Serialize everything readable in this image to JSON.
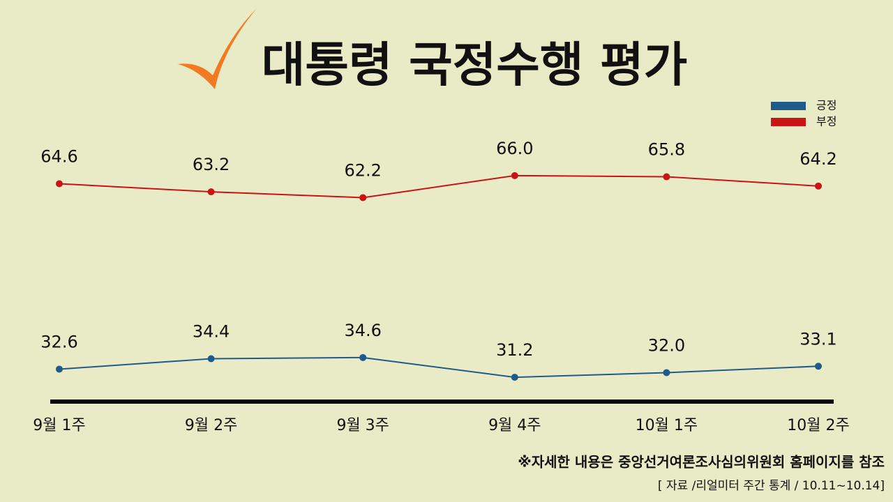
{
  "chart_data": {
    "type": "line",
    "title": "대통령 국정수행 평가",
    "categories": [
      "9월 1주",
      "9월 2주",
      "9월 3주",
      "9월 4주",
      "10월 1주",
      "10월 2주"
    ],
    "series": [
      {
        "name": "긍정",
        "color": "#1f5a8a",
        "values": [
          32.6,
          34.4,
          34.6,
          31.2,
          32.0,
          33.1
        ],
        "value_labels": [
          "32.6",
          "34.4",
          "34.6",
          "31.2",
          "32.0",
          "33.1"
        ]
      },
      {
        "name": "부정",
        "color": "#c81414",
        "values": [
          64.6,
          63.2,
          62.2,
          66.0,
          65.8,
          64.2
        ],
        "value_labels": [
          "64.6",
          "63.2",
          "62.2",
          "66.0",
          "65.8",
          "64.2"
        ]
      }
    ],
    "ylim": [
      27,
      72
    ],
    "annotations": [
      "※자세한 내용은 중앙선거여론조사심의위원회 홈페이지를 참조",
      "[ 자료 /리얼미터 주간 통계 / 10.11~10.14]"
    ]
  }
}
